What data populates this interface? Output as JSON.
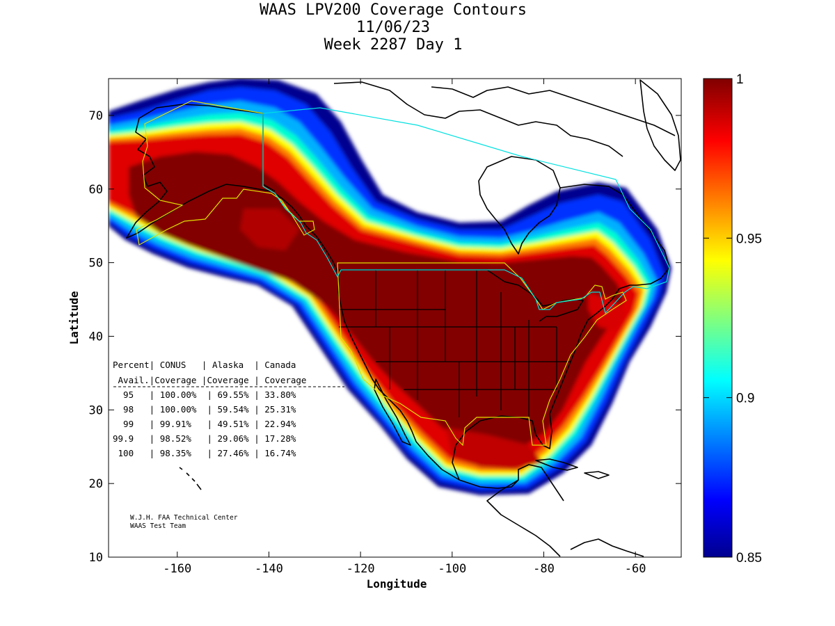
{
  "title": {
    "line1": "WAAS LPV200 Coverage Contours",
    "line2": "11/06/23",
    "line3": "Week 2287 Day 1"
  },
  "axes": {
    "xlabel": "Longitude",
    "ylabel": "Latitude",
    "xlim": [
      -175,
      -50
    ],
    "ylim": [
      10,
      75
    ],
    "xticks": [
      "-160",
      "-140",
      "-120",
      "-100",
      "-80",
      "-60"
    ],
    "yticks": [
      "10",
      "20",
      "30",
      "40",
      "50",
      "60",
      "70"
    ]
  },
  "colorbar": {
    "range": [
      0.85,
      1
    ],
    "ticks": [
      "1",
      "0.95",
      "0.9",
      "0.85"
    ]
  },
  "coverage_table": {
    "header1": "Percent| CONUS   | Alaska  | Canada",
    "header2": " Avail.|Coverage |Coverage | Coverage",
    "rows": [
      "  95   | 100.00%  | 69.55% | 33.80%",
      "  98   | 100.00%  | 59.54% | 25.31%",
      "  99   | 99.91%   | 49.51% | 22.94%",
      "99.9   | 98.52%   | 29.06% | 17.28%",
      " 100   | 98.35%   | 27.46% | 16.74%"
    ]
  },
  "credit": {
    "line1": "W.J.H. FAA Technical Center",
    "line2": "WAAS Test Team"
  },
  "colors": {
    "deep_red": "#800000",
    "red": "#e00000",
    "orange": "#ff8000",
    "yellow": "#ffff00",
    "cyan": "#00e0ff",
    "blue": "#0040ff",
    "navy": "#000090",
    "service_volume_alaska_conus": "#e0e000",
    "service_volume_canada": "#00e0e0"
  }
}
